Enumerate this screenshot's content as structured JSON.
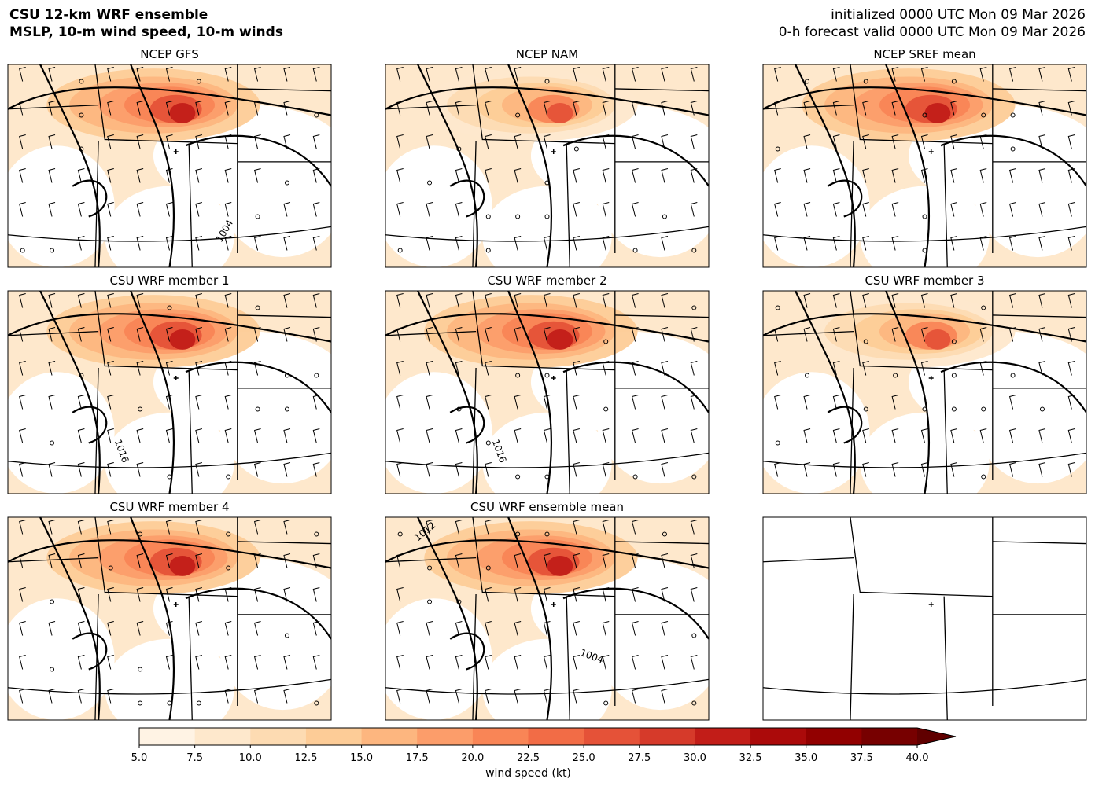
{
  "header": {
    "title_lines": [
      "CSU 12-km WRF ensemble",
      "MSLP, 10-m wind speed, 10-m winds"
    ],
    "time_lines": [
      "initialized 0000 UTC Mon 09 Mar 2026",
      "0-h forecast valid 0000 UTC Mon 09 Mar 2026"
    ]
  },
  "panels": [
    {
      "title": "NCEP GFS",
      "contour_labels": [
        1004
      ]
    },
    {
      "title": "NCEP NAM",
      "contour_labels": []
    },
    {
      "title": "NCEP SREF mean",
      "contour_labels": []
    },
    {
      "title": "CSU WRF member 1",
      "contour_labels": [
        1016
      ]
    },
    {
      "title": "CSU WRF member 2",
      "contour_labels": [
        1016
      ]
    },
    {
      "title": "CSU WRF member 3",
      "contour_labels": []
    },
    {
      "title": "CSU WRF member 4",
      "contour_labels": []
    },
    {
      "title": "CSU WRF ensemble mean",
      "contour_labels": [
        1012,
        1004
      ]
    },
    {
      "title": null,
      "contour_labels": []
    }
  ],
  "colorbar": {
    "label": "wind speed (kt)",
    "extend": "max",
    "ticks": [
      {
        "value": 5,
        "label": "5.0"
      },
      {
        "value": 7.5,
        "label": "7.5"
      },
      {
        "value": 10,
        "label": "10.0"
      },
      {
        "value": 12.5,
        "label": "12.5"
      },
      {
        "value": 15,
        "label": "15.0"
      },
      {
        "value": 17.5,
        "label": "17.5"
      },
      {
        "value": 20,
        "label": "20.0"
      },
      {
        "value": 22.5,
        "label": "22.5"
      },
      {
        "value": 25,
        "label": "25.0"
      },
      {
        "value": 27.5,
        "label": "27.5"
      },
      {
        "value": 30,
        "label": "30.0"
      },
      {
        "value": 32.5,
        "label": "32.5"
      },
      {
        "value": 35,
        "label": "35.0"
      },
      {
        "value": 37.5,
        "label": "37.5"
      },
      {
        "value": 40,
        "label": "40.0"
      }
    ],
    "colors": [
      "#fff3e4",
      "#fee8cc",
      "#fddbb2",
      "#fdcc97",
      "#fdb67f",
      "#fc9d6a",
      "#f98556",
      "#f26c46",
      "#e55238",
      "#d63a2a",
      "#c21d18",
      "#ab0a0a",
      "#920000",
      "#770000"
    ],
    "extend_color": "#600000"
  }
}
